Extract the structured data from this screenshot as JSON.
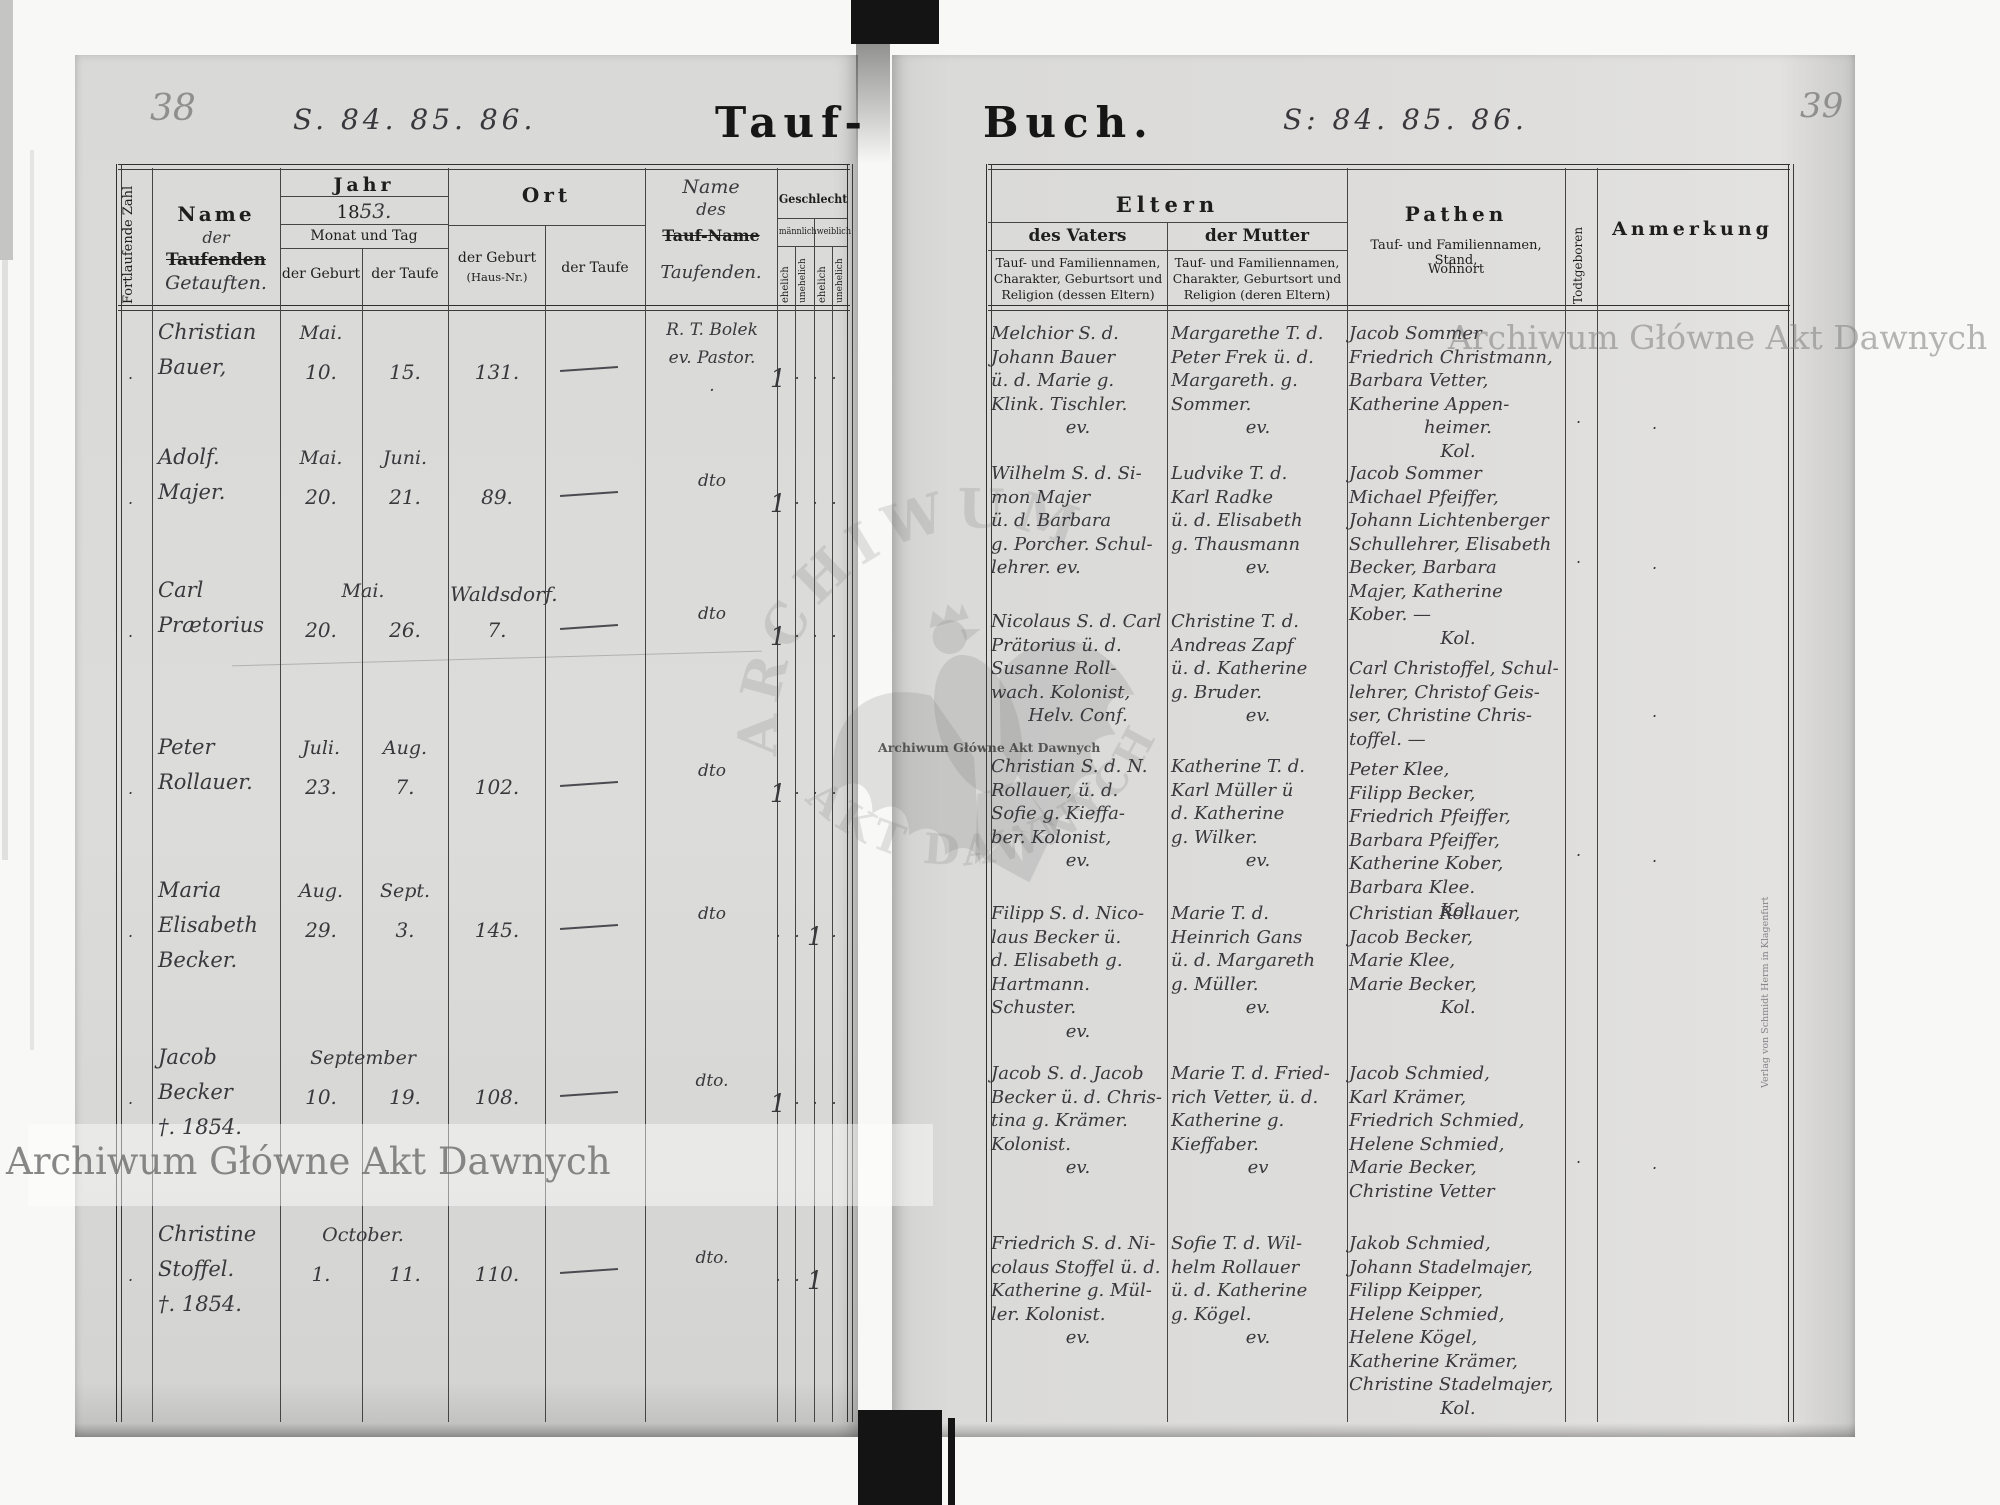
{
  "meta": {
    "left_folio": "38",
    "right_folio": "39",
    "left_sheet": "S. 84. 85. 86.",
    "right_sheet": "S: 84. 85. 86.",
    "title_left": "Tauf-",
    "title_right": "Buch."
  },
  "left_header": {
    "zahl": "Fortlaufende Zahl",
    "name1": "Name",
    "name2": "der",
    "name_struck": "Taufenden",
    "name_hand": "Getauften.",
    "jahr": "Jahr",
    "year_printed": "18",
    "year_hand": "53.",
    "monat": "Monat und Tag",
    "geb": "der Geburt",
    "taufe": "der Taufe",
    "ort": "Ort",
    "ort_geb": "der Geburt",
    "ort_geb2": "(Haus-Nr.)",
    "ort_taufe": "der Taufe",
    "tn1": "Name",
    "tn2": "des",
    "tn_struck": "Tauf-Name",
    "tn_hand": "Taufenden.",
    "geschlecht": "Geschlecht",
    "maennlich": "männlich",
    "weiblich": "weiblich",
    "ehelich": "ehelich",
    "unehelich": "unehelich"
  },
  "right_header": {
    "eltern": "Eltern",
    "vater": "des Vaters",
    "vater_sub": "Tauf- und Familiennamen, Charakter, Geburtsort und Religion (dessen Eltern)",
    "mutter": "der Mutter",
    "mutter_sub": "Tauf- und Familiennamen, Charakter, Geburtsort und Religion (deren Eltern)",
    "pathen": "Pathen",
    "pathen_sub1": "Tauf- und Familiennamen, Stand,",
    "pathen_sub2": "Wohnort",
    "todtgeboren": "Todtgeboren",
    "anmerkung": "Anmerkung"
  },
  "watermark": {
    "top_right": "Archiwum Główne Akt Dawnych",
    "bottom_left": "Archiwum Główne Akt Dawnych",
    "center_caption": "Archiwum Główne Akt Dawnych",
    "arc_top": "ARCHIWUM",
    "arc_bottom": "AKT DAWNYCH",
    "publisher": "Verlag von Schmidt Herm in Klagenfurt"
  },
  "entries": [
    {
      "name_lines": [
        "Christian",
        "Bauer,"
      ],
      "geb_month": "Mai.",
      "geb_day": "10.",
      "tauf_month": "",
      "tauf_day": "15.",
      "span_month": "",
      "haus_lines": [
        "131."
      ],
      "ort_taufe": "—",
      "taufender_lines": [
        "R. T. Bolek",
        "ev. Pastor.",
        "."
      ],
      "marks": [
        "1",
        ".",
        ".",
        "."
      ],
      "vater_lines": [
        "Melchior S. d.",
        "Johann Bauer",
        "ü. d. Marie g.",
        "Klink. Tischler.",
        "ev."
      ],
      "mutter_lines": [
        "Margarethe T. d.",
        "Peter Frek ü. d.",
        "Margareth. g.",
        "Sommer.",
        "ev."
      ],
      "pathen_lines": [
        "Jacob Sommer",
        "Friedrich Christmann,",
        "Barbara Vetter,",
        "Katherine Appen-",
        "heimer.",
        "Kol."
      ],
      "dot_todt": true,
      "dot_anm": true
    },
    {
      "name_lines": [
        "Adolf.",
        "Majer."
      ],
      "geb_month": "Mai.",
      "geb_day": "20.",
      "tauf_month": "Juni.",
      "tauf_day": "21.",
      "span_month": "",
      "haus_lines": [
        "89."
      ],
      "ort_taufe": "—",
      "taufender_lines": [
        "dto"
      ],
      "marks": [
        "1",
        ".",
        ".",
        "."
      ],
      "vater_lines": [
        "Wilhelm S. d. Si-",
        "mon Majer",
        "ü. d. Barbara",
        "g. Porcher. Schul-",
        "lehrer. ev."
      ],
      "mutter_lines": [
        "Ludvike T. d.",
        "Karl Radke",
        "ü. d. Elisabeth",
        "g. Thausmann",
        "ev."
      ],
      "pathen_lines": [
        "Jacob Sommer",
        "Michael Pfeiffer,",
        "Johann Lichtenberger",
        "Schullehrer, Elisabeth",
        "Becker, Barbara",
        "Majer, Katherine",
        "Kober. —",
        "Kol."
      ],
      "dot_todt": true,
      "dot_anm": true
    },
    {
      "name_lines": [
        "Carl",
        "Prætorius"
      ],
      "geb_month": "",
      "geb_day": "20.",
      "tauf_month": "",
      "tauf_day": "26.",
      "span_month": "Mai.",
      "haus_lines": [
        "Waldsdorf.",
        "7."
      ],
      "ort_taufe": "—",
      "taufender_lines": [
        "dto"
      ],
      "marks": [
        "1",
        ".",
        ".",
        "."
      ],
      "vater_lines": [
        "Nicolaus S. d. Carl",
        "Prätorius ü. d.",
        "Susanne Roll-",
        "wach. Kolonist,",
        "Helv. Conf."
      ],
      "mutter_lines": [
        "Christine T. d.",
        "Andreas Zapf",
        "ü. d. Katherine",
        "g. Bruder.",
        "ev."
      ],
      "pathen_lines": [
        "Carl Christoffel, Schul-",
        "lehrer, Christof Geis-",
        "ser, Christine Chris-",
        "toffel. —"
      ],
      "dot_todt": false,
      "dot_anm": true
    },
    {
      "name_lines": [
        "Peter",
        "Rollauer."
      ],
      "geb_month": "Juli.",
      "geb_day": "23.",
      "tauf_month": "Aug.",
      "tauf_day": "7.",
      "span_month": "",
      "haus_lines": [
        "102."
      ],
      "ort_taufe": "—",
      "taufender_lines": [
        "dto"
      ],
      "marks": [
        "1",
        ".",
        ".",
        "."
      ],
      "vater_lines": [
        "Christian S. d. N.",
        "Rollauer, ü. d.",
        "Sofie g. Kieffa-",
        "ber. Kolonist,",
        "ev."
      ],
      "mutter_lines": [
        "Katherine T. d.",
        "Karl Müller ü",
        "d. Katherine",
        "g. Wilker.",
        "ev."
      ],
      "pathen_lines": [
        "Peter Klee,",
        "Filipp Becker,",
        "Friedrich Pfeiffer,",
        "Barbara Pfeiffer,",
        "Katherine Kober,",
        "Barbara Klee.",
        "Kol."
      ],
      "dot_todt": true,
      "dot_anm": true
    },
    {
      "name_lines": [
        "Maria",
        "Elisabeth",
        "Becker."
      ],
      "geb_month": "Aug.",
      "geb_day": "29.",
      "tauf_month": "Sept.",
      "tauf_day": "3.",
      "span_month": "",
      "haus_lines": [
        "145."
      ],
      "ort_taufe": "—",
      "taufender_lines": [
        "dto"
      ],
      "marks": [
        ".",
        ".",
        "1",
        "."
      ],
      "vater_lines": [
        "Filipp S. d. Nico-",
        "laus Becker ü.",
        "d. Elisabeth g.",
        "Hartmann.",
        "Schuster.",
        "ev."
      ],
      "mutter_lines": [
        "Marie T. d.",
        "Heinrich Gans",
        "ü. d. Margareth",
        "g. Müller.",
        "ev."
      ],
      "pathen_lines": [
        "Christian Rollauer,",
        "Jacob Becker,",
        "Marie Klee,",
        "Marie Becker,",
        "Kol."
      ],
      "dot_todt": false,
      "dot_anm": false
    },
    {
      "name_lines": [
        "Jacob",
        "Becker",
        "†. 1854."
      ],
      "geb_month": "",
      "geb_day": "10.",
      "tauf_month": "",
      "tauf_day": "19.",
      "span_month": "September",
      "haus_lines": [
        "108."
      ],
      "ort_taufe": "—",
      "taufender_lines": [
        "dto."
      ],
      "marks": [
        "1",
        ".",
        ".",
        "."
      ],
      "vater_lines": [
        "Jacob S. d. Jacob",
        "Becker ü. d. Chris-",
        "tina g. Krämer.",
        "Kolonist.",
        "ev."
      ],
      "mutter_lines": [
        "Marie T. d. Fried-",
        "rich Vetter, ü. d.",
        "Katherine g.",
        "Kieffaber.",
        "ev"
      ],
      "pathen_lines": [
        "Jacob Schmied,",
        "Karl Krämer,",
        "Friedrich Schmied,",
        "Helene Schmied,",
        "Marie Becker,",
        "Christine Vetter"
      ],
      "dot_todt": true,
      "dot_anm": true
    },
    {
      "name_lines": [
        "Christine",
        "Stoffel.",
        "†. 1854."
      ],
      "geb_month": "",
      "geb_day": "1.",
      "tauf_month": "",
      "tauf_day": "11.",
      "span_month": "October.",
      "haus_lines": [
        "110."
      ],
      "ort_taufe": "—",
      "taufender_lines": [
        "dto."
      ],
      "marks": [
        ".",
        ".",
        "1",
        ""
      ],
      "vater_lines": [
        "Friedrich S. d. Ni-",
        "colaus Stoffel ü. d.",
        "Katherine g. Mül-",
        "ler. Kolonist.",
        "ev."
      ],
      "mutter_lines": [
        "Sofie T. d. Wil-",
        "helm Rollauer",
        "ü. d. Katherine",
        "g. Kögel.",
        "ev."
      ],
      "pathen_lines": [
        "Jakob Schmied,",
        "Johann Stadelmajer,",
        "Filipp Keipper,",
        "Helene Schmied,",
        "Helene Kögel,",
        "Katherine Krämer,",
        "Christine Stadelmajer,",
        "Kol."
      ],
      "dot_todt": false,
      "dot_anm": false
    }
  ]
}
